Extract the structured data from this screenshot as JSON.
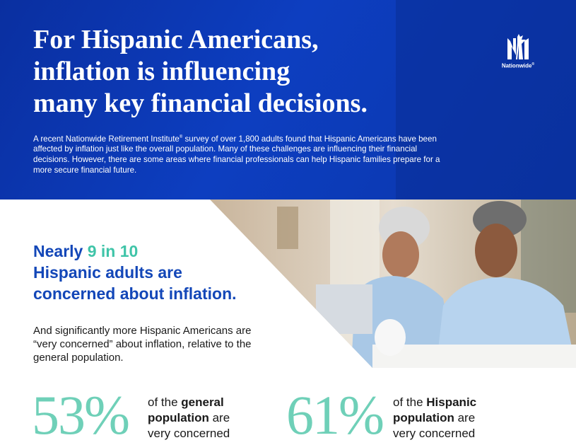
{
  "hero": {
    "title_lines": [
      "For Hispanic Americans,",
      "inflation is influencing",
      "many key financial decisions."
    ],
    "intro_part1": "A recent Nationwide Retirement Institute",
    "intro_reg": "®",
    "intro_part2": " survey of over 1,800 adults found that Hispanic Americans have been affected by inflation just like the overall population. Many of these challenges are influencing their financial decisions. However, there are some areas where financial professionals can help Hispanic families prepare for a more secure financial future."
  },
  "logo": {
    "wordmark": "Nationwide",
    "reg": "®",
    "icon": "nationwide-eagle-logo"
  },
  "stat": {
    "head_lead": "Nearly ",
    "head_highlight": "9 in 10",
    "head_line2": "Hispanic adults are",
    "head_line3": "concerned about inflation.",
    "sub": "And significantly more Hispanic Americans are “very concerned” about inflation, relative to the general population."
  },
  "comparison": [
    {
      "value": "53%",
      "pre": "of the ",
      "bold": "general population",
      "post1": " are",
      "post2": "very concerned"
    },
    {
      "value": "61%",
      "pre": "of the ",
      "bold": "Hispanic population",
      "post1": " are",
      "post2": "very concerned"
    }
  ],
  "colors": {
    "hero_blue": "#0c3bb3",
    "accent_teal": "#6fd0b8",
    "heading_blue": "#1347b8"
  }
}
